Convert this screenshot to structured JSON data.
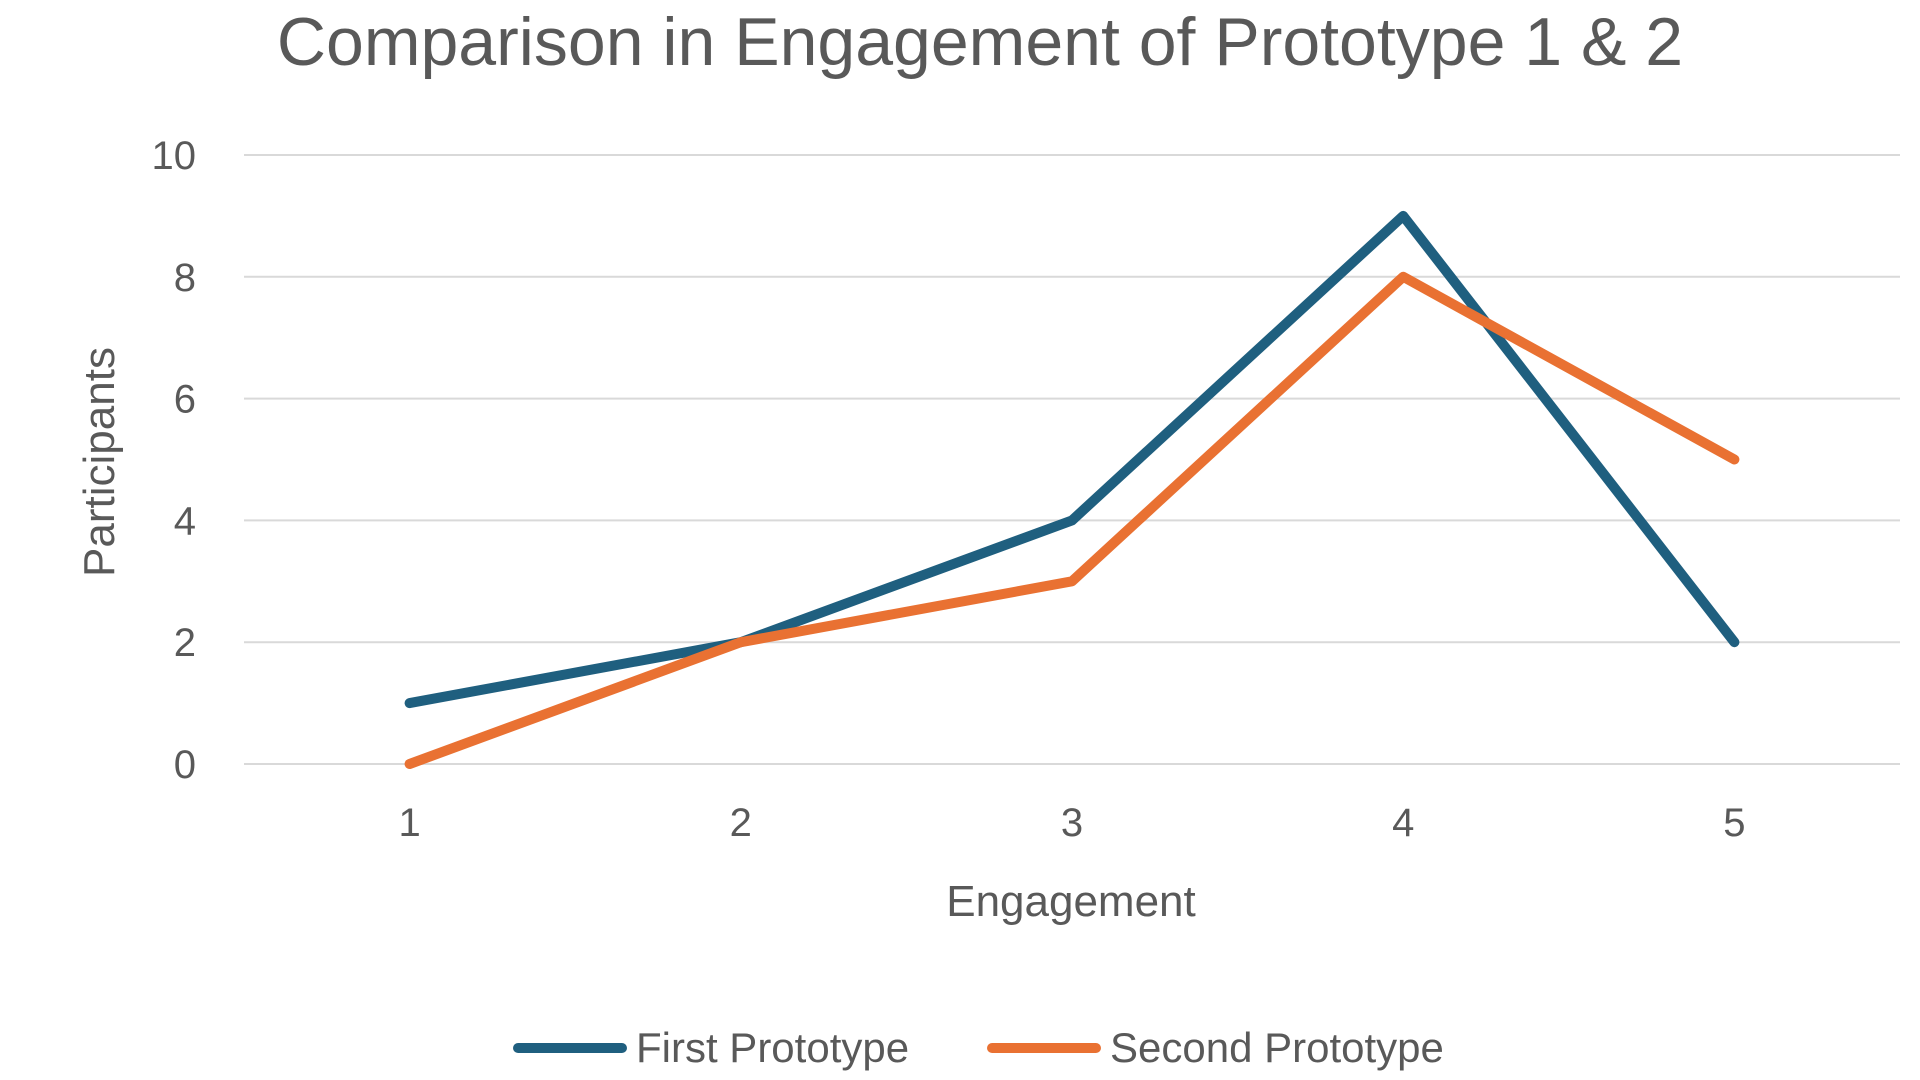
{
  "chart_data": {
    "type": "line",
    "title": "Comparison in Engagement of Prototype 1 & 2",
    "xlabel": "Engagement",
    "ylabel": "Participants",
    "categories": [
      "1",
      "2",
      "3",
      "4",
      "5"
    ],
    "ylim": [
      0,
      10
    ],
    "yticks": [
      "0",
      "2",
      "4",
      "6",
      "8",
      "10"
    ],
    "grid": true,
    "legend_position": "bottom",
    "series": [
      {
        "name": "First Prototype",
        "values": [
          1,
          2,
          4,
          9,
          2
        ],
        "color": "#1f5f7f"
      },
      {
        "name": "Second Prototype",
        "values": [
          0,
          2,
          3,
          8,
          5
        ],
        "color": "#e97132"
      }
    ]
  }
}
